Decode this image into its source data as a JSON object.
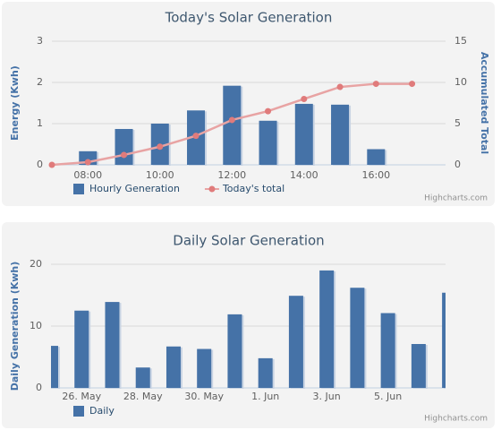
{
  "chart_data": [
    {
      "type": "bar",
      "title": "Today's Solar Generation",
      "ylabel": "Energy (Kwh)",
      "y2label": "Accumulated Total",
      "categories": [
        null,
        "08:00",
        null,
        "10:00",
        null,
        "12:00",
        null,
        "14:00",
        null,
        "16:00",
        null
      ],
      "series": [
        {
          "name": "Hourly Generation",
          "type": "bar",
          "color": "#4572A7",
          "values": [
            null,
            0.33,
            0.87,
            1.0,
            1.32,
            1.92,
            1.07,
            1.48,
            1.46,
            0.38,
            null
          ]
        },
        {
          "name": "Today's total",
          "type": "line",
          "axis": "y2",
          "color": "#E8A3A3",
          "values": [
            0,
            0.33,
            1.2,
            2.2,
            3.52,
            5.44,
            6.51,
            7.99,
            9.45,
            9.83,
            9.83
          ]
        }
      ],
      "ylim": [
        0,
        3
      ],
      "yticks": [
        0,
        1,
        2,
        3
      ],
      "y2lim": [
        0,
        15
      ],
      "y2ticks": [
        0,
        5,
        10,
        15
      ],
      "grid": true,
      "credits": "Highcharts.com"
    },
    {
      "type": "bar",
      "title": "Daily Solar Generation",
      "ylabel": "Daily Generation (Kwh)",
      "categories": [
        null,
        "26. May",
        null,
        "28. May",
        null,
        "30. May",
        null,
        "1. Jun",
        null,
        "3. Jun",
        null,
        "5. Jun",
        null,
        null
      ],
      "series": [
        {
          "name": "Daily",
          "type": "bar",
          "color": "#4572A7",
          "values": [
            6.8,
            12.5,
            13.9,
            3.3,
            6.7,
            6.3,
            11.9,
            4.8,
            14.9,
            19.0,
            16.2,
            12.1,
            7.1,
            15.4
          ]
        }
      ],
      "ylim": [
        0,
        20
      ],
      "yticks": [
        0,
        10,
        20
      ],
      "grid": true,
      "credits": "Highcharts.com"
    }
  ]
}
